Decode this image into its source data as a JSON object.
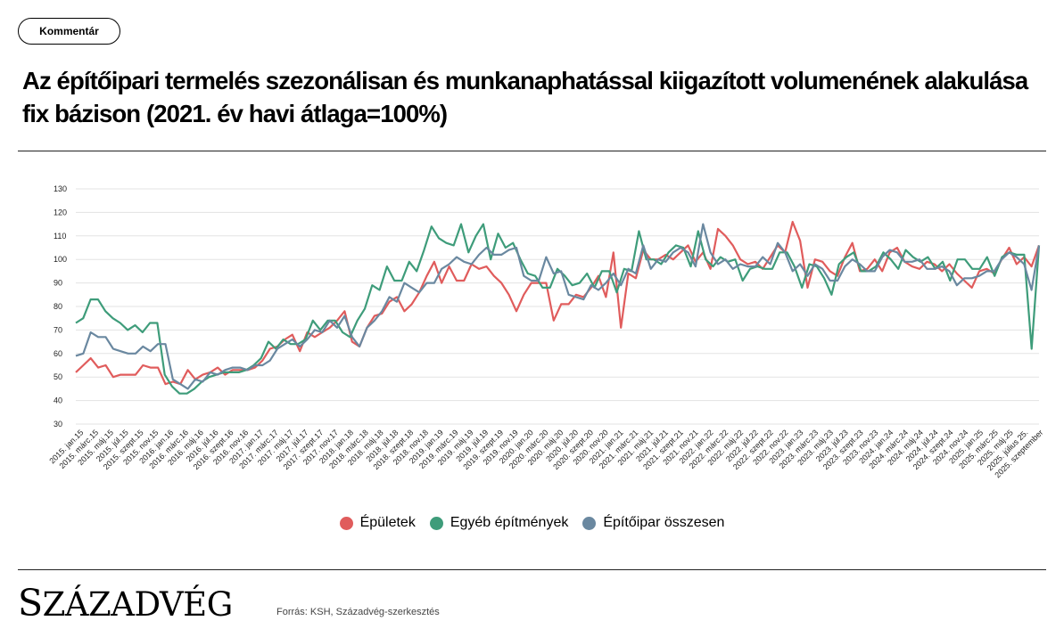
{
  "badge": {
    "label": "Kommentár"
  },
  "title": "Az építőipari termelés szezonálisan és munkanaphatással kiigazított volumenének alakulása fix bázison (2021. év havi átlaga=100%)",
  "source": "Forrás: KSH, Századvég-szerkesztés",
  "logo": {
    "first": "S",
    "rest": "ZÁZADVÉG"
  },
  "colors": {
    "epuletek": "#e05c5c",
    "egyeb": "#3e9c7a",
    "osszesen": "#6a88a0"
  },
  "chart_data": {
    "type": "line",
    "title": "Az építőipari termelés szezonálisan és munkanaphatással kiigazított volumenének alakulása fix bázison (2021. év havi átlaga=100%)",
    "xlabel": "",
    "ylabel": "",
    "ylim": [
      30,
      130
    ],
    "yticks": [
      30,
      40,
      50,
      60,
      70,
      80,
      90,
      100,
      110,
      120,
      130
    ],
    "grid": "horizontal",
    "legend_position": "bottom-center",
    "tick_labels": [
      "2015. jan.15",
      "2015. márc.15",
      "2015. máj.15",
      "2015. júl.15",
      "2015. szept.15",
      "2015. nov.15",
      "2016. jan.16",
      "2016. márc.16",
      "2016. máj.16",
      "2016. júl.16",
      "2016. szept.16",
      "2016. nov.16",
      "2017. jan.17",
      "2017. márc.17",
      "2017. máj.17",
      "2017. júl.17",
      "2017. szept.17",
      "2017. nov.17",
      "2018. jan.18",
      "2018. márc.18",
      "2018. máj.18",
      "2018. júl.18",
      "2018. szept.18",
      "2018. nov.18",
      "2019. jan.19",
      "2019. márc.19",
      "2019. máj.19",
      "2019. júl.19",
      "2019. szept.19",
      "2019. nov.19",
      "2020. jan.20",
      "2020. márc.20",
      "2020. máj.20",
      "2020. júl.20",
      "2020. szept.20",
      "2020. nov.20",
      "2021. jan.21",
      "2021. márc.21",
      "2021. máj.21",
      "2021. júl.21",
      "2021. szept.21",
      "2021. nov.21",
      "2022. jan.22",
      "2022. márc.22",
      "2022. máj.22",
      "2022. júl.22",
      "2022. szept.22",
      "2022. nov.22",
      "2023. jan.23",
      "2023. márc.23",
      "2023. máj.23",
      "2023. júl.23",
      "2023. szept.23",
      "2023. nov.23",
      "2024. jan.24",
      "2024. márc.24",
      "2024. máj.24",
      "2024. júl.24",
      "2024. szept.24",
      "2024. nov.24",
      "2025. jan.25",
      "2025. márc.25",
      "2025. máj.25",
      "2025. július 25.",
      "2025. szeptember"
    ],
    "series": [
      {
        "name": "Épületek",
        "values": [
          52,
          55,
          58,
          54,
          55,
          50,
          51,
          51,
          51,
          55,
          54,
          54,
          47,
          48,
          47,
          53,
          49,
          51,
          52,
          54,
          51,
          53,
          53,
          53,
          54,
          57,
          62,
          63,
          66,
          68,
          61,
          69,
          67,
          69,
          71,
          74,
          78,
          65,
          63,
          71,
          76,
          77,
          82,
          84,
          78,
          81,
          86,
          93,
          99,
          90,
          97,
          91,
          91,
          98,
          96,
          97,
          93,
          90,
          85,
          78,
          85,
          90,
          90,
          90,
          74,
          81,
          81,
          85,
          84,
          88,
          93,
          84,
          103,
          71,
          94,
          92,
          104,
          100,
          100,
          102,
          100,
          103,
          106,
          99,
          103,
          96,
          113,
          110,
          106,
          100,
          98,
          99,
          96,
          101,
          106,
          103,
          116,
          108,
          88,
          100,
          99,
          95,
          93,
          101,
          107,
          95,
          96,
          100,
          95,
          103,
          105,
          99,
          97,
          96,
          99,
          98,
          95,
          98,
          94,
          91,
          88,
          95,
          96,
          94,
          100,
          105,
          98,
          101,
          97,
          106
        ]
      },
      {
        "name": "Egyéb építmények",
        "values": [
          73,
          75,
          83,
          83,
          78,
          75,
          73,
          70,
          72,
          69,
          73,
          73,
          51,
          46,
          43,
          43,
          45,
          48,
          50,
          51,
          52,
          52,
          52,
          53,
          55,
          58,
          65,
          62,
          66,
          64,
          64,
          66,
          74,
          70,
          74,
          74,
          69,
          67,
          74,
          79,
          89,
          87,
          97,
          91,
          91,
          99,
          95,
          104,
          114,
          109,
          107,
          106,
          115,
          103,
          110,
          115,
          100,
          111,
          105,
          107,
          100,
          94,
          93,
          88,
          88,
          96,
          93,
          89,
          90,
          94,
          88,
          95,
          95,
          86,
          96,
          95,
          112,
          100,
          100,
          98,
          103,
          106,
          105,
          97,
          112,
          100,
          97,
          101,
          99,
          100,
          91,
          96,
          97,
          96,
          96,
          103,
          103,
          97,
          88,
          98,
          97,
          92,
          85,
          98,
          101,
          103,
          95,
          95,
          97,
          103,
          100,
          96,
          104,
          101,
          99,
          101,
          96,
          99,
          91,
          100,
          100,
          96,
          96,
          101,
          93,
          101,
          103,
          102,
          102,
          62,
          106
        ]
      },
      {
        "name": "Építőipar összesen",
        "values": [
          59,
          60,
          69,
          67,
          67,
          62,
          61,
          60,
          60,
          63,
          61,
          64,
          64,
          49,
          47,
          45,
          49,
          48,
          52,
          51,
          53,
          54,
          54,
          53,
          55,
          55,
          57,
          62,
          64,
          66,
          63,
          66,
          70,
          69,
          74,
          71,
          76,
          67,
          63,
          71,
          74,
          78,
          84,
          82,
          90,
          88,
          86,
          90,
          90,
          96,
          98,
          101,
          99,
          98,
          102,
          105,
          102,
          102,
          104,
          105,
          93,
          91,
          91,
          101,
          94,
          95,
          85,
          84,
          83,
          89,
          87,
          90,
          94,
          89,
          96,
          94,
          106,
          96,
          100,
          99,
          103,
          105,
          103,
          97,
          115,
          103,
          98,
          100,
          96,
          98,
          97,
          97,
          101,
          98,
          107,
          103,
          95,
          98,
          93,
          98,
          96,
          91,
          91,
          97,
          100,
          98,
          95,
          95,
          101,
          104,
          103,
          99,
          99,
          100,
          96,
          96,
          97,
          95,
          89,
          92,
          92,
          93,
          95,
          95,
          100,
          103,
          101,
          98,
          87,
          106
        ]
      }
    ]
  }
}
